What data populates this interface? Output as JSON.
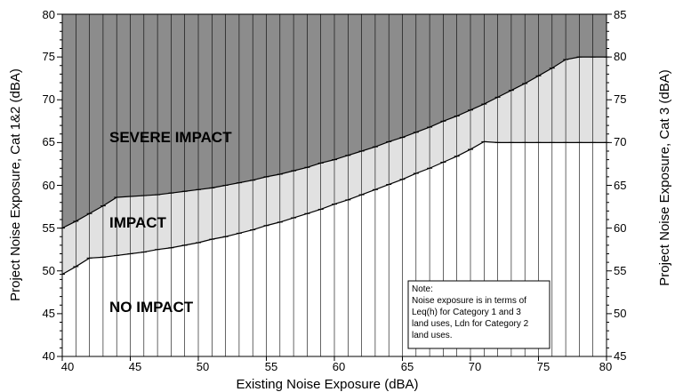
{
  "chart_data": {
    "type": "area",
    "xlabel": "Existing Noise Exposure (dBA)",
    "ylabel_left": "Project Noise Exposure, Cat 1&2 (dBA)",
    "ylabel_right": "Project Noise Exposure, Cat 3 (dBA)",
    "xlim": [
      40,
      80
    ],
    "ylim_left": [
      40,
      80
    ],
    "ylim_right": [
      45,
      85
    ],
    "x_ticks": [
      "40",
      "45",
      "50",
      "55",
      "60",
      "65",
      "70",
      "75",
      "80"
    ],
    "y_ticks_left": [
      "40",
      "45",
      "50",
      "55",
      "60",
      "65",
      "70",
      "75",
      "80"
    ],
    "y_ticks_right": [
      "45",
      "50",
      "55",
      "60",
      "65",
      "70",
      "75",
      "80",
      "85"
    ],
    "grid": "vertical lines every 1 dBA",
    "regions": {
      "severe": "SEVERE IMPACT",
      "impact": "IMPACT",
      "none": "NO IMPACT"
    },
    "series": [
      {
        "name": "Severe Impact threshold",
        "x": [
          40,
          41,
          42,
          43,
          44,
          45,
          46,
          47,
          48,
          49,
          50,
          51,
          52,
          53,
          54,
          55,
          56,
          57,
          58,
          59,
          60,
          61,
          62,
          63,
          64,
          65,
          66,
          67,
          68,
          69,
          70,
          71,
          72,
          73,
          74,
          75,
          76,
          77,
          78,
          79,
          80
        ],
        "values": [
          55.0,
          55.8,
          56.7,
          57.6,
          58.6,
          58.7,
          58.8,
          58.9,
          59.1,
          59.3,
          59.5,
          59.7,
          60.0,
          60.3,
          60.6,
          61.0,
          61.3,
          61.7,
          62.1,
          62.6,
          63.0,
          63.5,
          64.0,
          64.5,
          65.1,
          65.6,
          66.2,
          66.8,
          67.5,
          68.1,
          68.8,
          69.5,
          70.3,
          71.1,
          71.9,
          72.8,
          73.7,
          74.7,
          75.0,
          75.0,
          75.0
        ]
      },
      {
        "name": "Impact threshold",
        "x": [
          40,
          41,
          42,
          43,
          44,
          45,
          46,
          47,
          48,
          49,
          50,
          51,
          52,
          53,
          54,
          55,
          56,
          57,
          58,
          59,
          60,
          61,
          62,
          63,
          64,
          65,
          66,
          67,
          68,
          69,
          70,
          71,
          72,
          73,
          74,
          75,
          76,
          77,
          78,
          79,
          80
        ],
        "values": [
          49.6,
          50.5,
          51.5,
          51.6,
          51.8,
          52.0,
          52.2,
          52.5,
          52.7,
          53.0,
          53.3,
          53.7,
          54.0,
          54.4,
          54.8,
          55.3,
          55.7,
          56.2,
          56.7,
          57.2,
          57.8,
          58.3,
          58.9,
          59.5,
          60.1,
          60.7,
          61.4,
          62.0,
          62.7,
          63.4,
          64.2,
          65.1,
          65.0,
          65.0,
          65.0,
          65.0,
          65.0,
          65.0,
          65.0,
          65.0,
          65.0
        ]
      }
    ],
    "note": [
      "Note:",
      "Noise exposure is in terms of",
      "Leq(h) for Category 1 and 3",
      "land uses, Ldn for Category 2",
      "land uses."
    ],
    "colors": {
      "severe": "#8c8c8c",
      "impact": "#e1e1e1",
      "none": "#ffffff",
      "grid": "#000000"
    }
  }
}
